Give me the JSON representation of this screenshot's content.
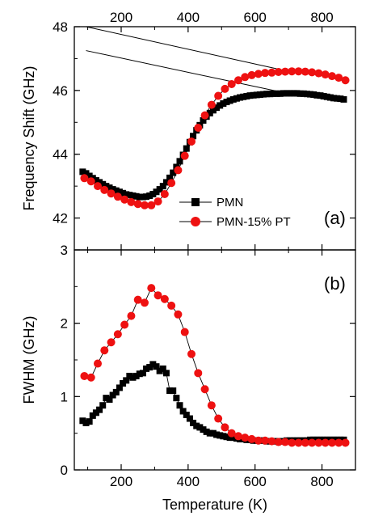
{
  "chart_data": [
    {
      "type": "scatter",
      "panel_label": "(a)",
      "ylabel": "Frequency Shift (GHz)",
      "xlim": [
        60,
        900
      ],
      "ylim": [
        41,
        48
      ],
      "x_ticks": [
        "200",
        "400",
        "600",
        "800"
      ],
      "y_ticks": [
        "42",
        "44",
        "46",
        "48"
      ],
      "y_tick_values": [
        42,
        44,
        46,
        48
      ],
      "legend_position": "lower-right",
      "series": [
        {
          "name": "PMN",
          "marker": "square",
          "color": "#000000",
          "x": [
            85,
            95,
            105,
            115,
            125,
            135,
            145,
            155,
            165,
            175,
            185,
            195,
            205,
            215,
            225,
            235,
            245,
            255,
            265,
            275,
            285,
            295,
            305,
            315,
            325,
            335,
            345,
            355,
            365,
            375,
            385,
            395,
            405,
            415,
            425,
            435,
            445,
            455,
            465,
            475,
            485,
            495,
            505,
            515,
            525,
            535,
            545,
            555,
            565,
            575,
            585,
            595,
            605,
            615,
            625,
            635,
            645,
            655,
            665,
            675,
            685,
            695,
            705,
            715,
            725,
            735,
            745,
            755,
            765,
            775,
            785,
            795,
            805,
            815,
            825,
            835,
            845,
            855,
            865
          ],
          "y": [
            43.45,
            43.4,
            43.32,
            43.25,
            43.18,
            43.12,
            43.06,
            43.0,
            42.95,
            42.9,
            42.86,
            42.82,
            42.78,
            42.74,
            42.72,
            42.7,
            42.68,
            42.66,
            42.66,
            42.67,
            42.7,
            42.75,
            42.82,
            42.9,
            43.0,
            43.12,
            43.26,
            43.42,
            43.6,
            43.78,
            43.98,
            44.18,
            44.38,
            44.57,
            44.75,
            44.91,
            45.06,
            45.18,
            45.29,
            45.38,
            45.46,
            45.53,
            45.59,
            45.64,
            45.68,
            45.72,
            45.75,
            45.78,
            45.8,
            45.82,
            45.84,
            45.85,
            45.86,
            45.87,
            45.88,
            45.89,
            45.89,
            45.9,
            45.9,
            45.9,
            45.91,
            45.91,
            45.91,
            45.91,
            45.91,
            45.9,
            45.9,
            45.89,
            45.88,
            45.87,
            45.85,
            45.84,
            45.82,
            45.8,
            45.78,
            45.76,
            45.75,
            45.74,
            45.72
          ]
        },
        {
          "name": "PMN-15% PT",
          "marker": "circle",
          "color": "#ee1111",
          "x": [
            90,
            110,
            130,
            150,
            170,
            190,
            210,
            230,
            250,
            270,
            290,
            310,
            330,
            350,
            370,
            390,
            410,
            430,
            450,
            470,
            490,
            510,
            530,
            550,
            570,
            590,
            610,
            630,
            650,
            670,
            690,
            710,
            730,
            750,
            770,
            790,
            810,
            830,
            850,
            870
          ],
          "y": [
            43.25,
            43.15,
            43.0,
            42.88,
            42.77,
            42.67,
            42.58,
            42.5,
            42.44,
            42.4,
            42.4,
            42.52,
            42.75,
            43.1,
            43.5,
            43.95,
            44.4,
            44.83,
            45.22,
            45.55,
            45.83,
            46.05,
            46.2,
            46.32,
            46.42,
            46.48,
            46.52,
            46.55,
            46.56,
            46.58,
            46.59,
            46.6,
            46.6,
            46.59,
            46.57,
            46.54,
            46.5,
            46.45,
            46.4,
            46.32
          ]
        }
      ],
      "reference_lines": [
        {
          "x": [
            95,
            700
          ],
          "y": [
            48.0,
            46.6
          ]
        },
        {
          "x": [
            95,
            700
          ],
          "y": [
            47.25,
            45.9
          ]
        }
      ]
    },
    {
      "type": "scatter",
      "panel_label": "(b)",
      "xlabel": "Temperature (K)",
      "ylabel": "FWHM (GHz)",
      "xlim": [
        60,
        900
      ],
      "ylim": [
        0,
        3
      ],
      "x_ticks": [
        "200",
        "400",
        "600",
        "800"
      ],
      "y_ticks": [
        "0",
        "1",
        "2",
        "3"
      ],
      "y_tick_values": [
        0,
        1,
        2,
        3
      ],
      "series": [
        {
          "name": "PMN",
          "marker": "square",
          "color": "#000000",
          "x": [
            85,
            95,
            105,
            115,
            125,
            135,
            145,
            155,
            165,
            175,
            185,
            195,
            205,
            215,
            225,
            235,
            245,
            255,
            265,
            275,
            285,
            295,
            305,
            315,
            325,
            335,
            345,
            355,
            365,
            375,
            385,
            395,
            405,
            415,
            425,
            435,
            445,
            455,
            465,
            475,
            485,
            495,
            505,
            515,
            525,
            535,
            545,
            555,
            565,
            575,
            585,
            595,
            605,
            615,
            625,
            635,
            645,
            655,
            665,
            675,
            685,
            695,
            705,
            715,
            725,
            735,
            745,
            755,
            765,
            775,
            785,
            795,
            805,
            815,
            825,
            835,
            845,
            855,
            865
          ],
          "y": [
            0.67,
            0.64,
            0.66,
            0.74,
            0.78,
            0.82,
            0.88,
            0.98,
            0.96,
            1.02,
            1.06,
            1.12,
            1.18,
            1.22,
            1.28,
            1.26,
            1.28,
            1.31,
            1.32,
            1.38,
            1.4,
            1.44,
            1.41,
            1.35,
            1.38,
            1.32,
            1.08,
            1.08,
            0.98,
            0.88,
            0.8,
            0.75,
            0.7,
            0.64,
            0.6,
            0.58,
            0.55,
            0.52,
            0.5,
            0.5,
            0.48,
            0.47,
            0.46,
            0.45,
            0.44,
            0.44,
            0.43,
            0.42,
            0.42,
            0.41,
            0.41,
            0.4,
            0.4,
            0.4,
            0.4,
            0.39,
            0.39,
            0.39,
            0.39,
            0.39,
            0.39,
            0.4,
            0.4,
            0.4,
            0.4,
            0.4,
            0.4,
            0.4,
            0.41,
            0.41,
            0.41,
            0.41,
            0.41,
            0.41,
            0.41,
            0.41,
            0.41,
            0.41,
            0.41
          ]
        },
        {
          "name": "PMN-15% PT",
          "marker": "circle",
          "color": "#ee1111",
          "x": [
            90,
            110,
            130,
            150,
            170,
            190,
            210,
            230,
            250,
            270,
            290,
            310,
            330,
            350,
            370,
            390,
            410,
            430,
            450,
            470,
            490,
            510,
            530,
            550,
            570,
            590,
            610,
            630,
            650,
            670,
            690,
            710,
            730,
            750,
            770,
            790,
            810,
            830,
            850,
            870
          ],
          "y": [
            1.28,
            1.26,
            1.45,
            1.63,
            1.74,
            1.85,
            1.98,
            2.1,
            2.32,
            2.28,
            2.48,
            2.38,
            2.33,
            2.24,
            2.12,
            1.88,
            1.58,
            1.32,
            1.1,
            0.88,
            0.7,
            0.58,
            0.5,
            0.46,
            0.44,
            0.42,
            0.4,
            0.4,
            0.39,
            0.38,
            0.38,
            0.37,
            0.37,
            0.37,
            0.37,
            0.37,
            0.37,
            0.37,
            0.37,
            0.37
          ]
        }
      ]
    }
  ]
}
